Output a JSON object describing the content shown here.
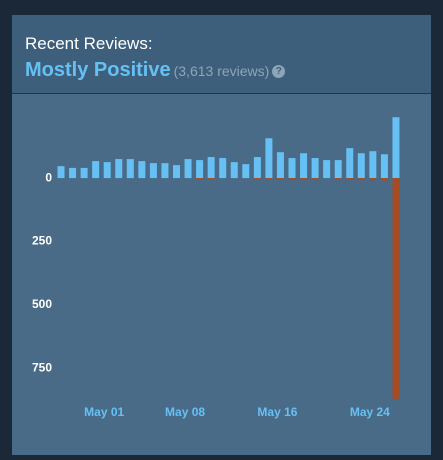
{
  "header": {
    "title": "Recent Reviews:",
    "summary": "Mostly Positive",
    "count": "(3,613 reviews)",
    "help": "?"
  },
  "chart_data": {
    "type": "bar",
    "categories": [
      null,
      null,
      null,
      null,
      "May 01",
      null,
      null,
      null,
      null,
      null,
      null,
      "May 08",
      null,
      null,
      null,
      null,
      null,
      null,
      null,
      "May 16",
      null,
      null,
      null,
      null,
      null,
      null,
      null,
      "May 24",
      null,
      null
    ],
    "series": [
      {
        "color": "#66c0f4",
        "values": [
          47,
          40,
          40,
          67,
          63,
          75,
          75,
          67,
          59,
          59,
          51,
          75,
          71,
          83,
          79,
          63,
          55,
          83,
          157,
          102,
          79,
          98,
          79,
          71,
          71,
          118,
          98,
          106,
          94,
          240
        ]
      },
      {
        "color": "#a34c25",
        "values": [
          0,
          0,
          0,
          0,
          0,
          0,
          0,
          0,
          0,
          0,
          0,
          0,
          -6,
          -6,
          0,
          0,
          0,
          -4,
          -4,
          -6,
          -8,
          -8,
          -6,
          0,
          -4,
          -6,
          -8,
          -8,
          -10,
          -870
        ]
      }
    ],
    "ylim": [
      -875,
      300
    ],
    "yticks": [
      0,
      {
        "value": -250,
        "label": "250"
      },
      {
        "value": -500,
        "label": "500"
      },
      {
        "value": -750,
        "label": "750"
      }
    ]
  }
}
